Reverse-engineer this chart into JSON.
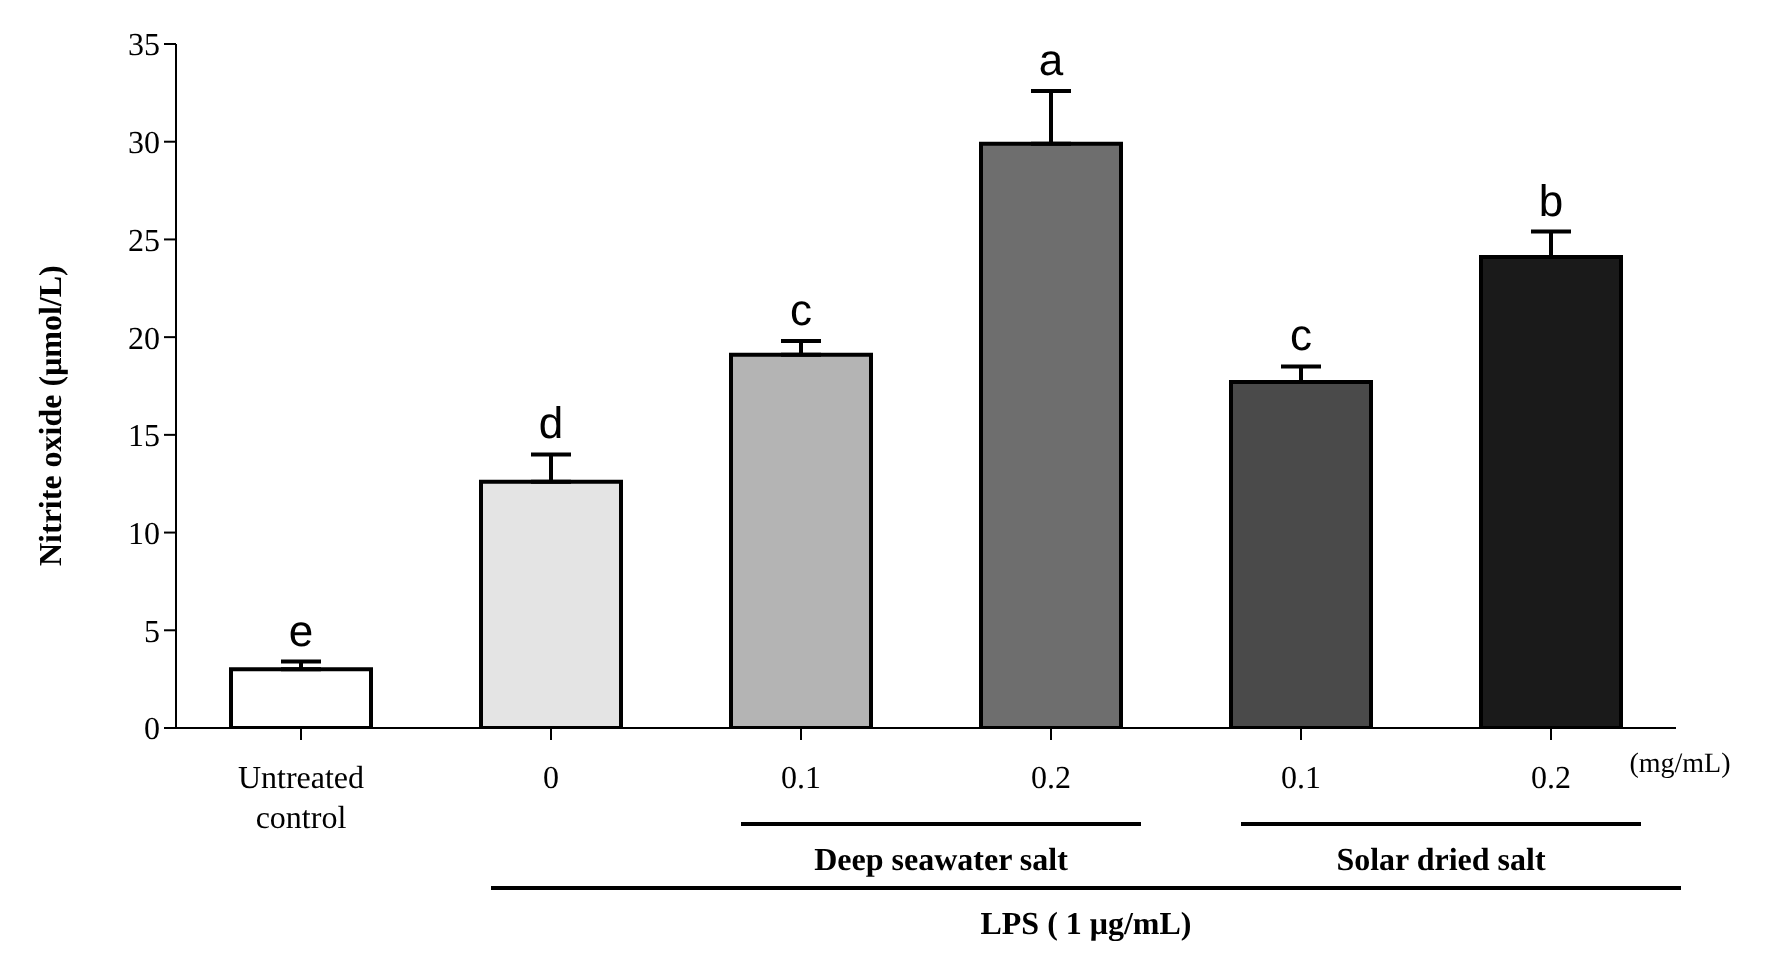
{
  "chart_data": {
    "type": "bar",
    "ylabel": "Nitrite oxide (μmol/L)",
    "categories": [
      "Untreated control",
      "0",
      "0.1",
      "0.2",
      "0.1",
      "0.2"
    ],
    "values": [
      3.0,
      12.6,
      19.1,
      29.9,
      17.7,
      24.1
    ],
    "errors": [
      0.4,
      1.4,
      0.7,
      2.7,
      0.8,
      1.3
    ],
    "colors": [
      "#ffffff",
      "#e4e4e4",
      "#b4b4b4",
      "#6e6e6e",
      "#4a4a4a",
      "#1a1a1a"
    ],
    "ylim": [
      0,
      35
    ],
    "yticks": [
      0,
      5,
      10,
      15,
      20,
      25,
      30,
      35
    ],
    "grid": false,
    "legend": false,
    "annotations": [
      "e",
      "d",
      "c",
      "a",
      "c",
      "b",
      "(mg/mL)",
      "Deep seawater salt",
      "Solar dried salt",
      "LPS ( 1 μg/mL)"
    ]
  }
}
